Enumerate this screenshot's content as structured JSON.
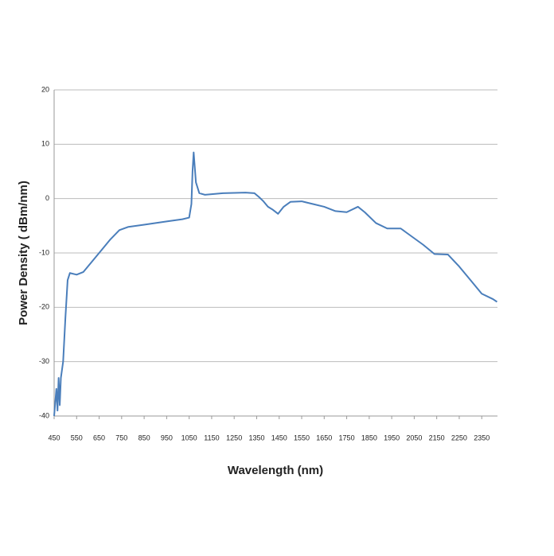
{
  "chart_data": {
    "type": "line",
    "x_label": "Wavelength (nm)",
    "y_label": "Power Density ( dBm/nm)",
    "x": [
      450,
      460,
      465,
      470,
      475,
      480,
      490,
      500,
      510,
      520,
      550,
      580,
      620,
      660,
      700,
      740,
      780,
      850,
      950,
      1020,
      1050,
      1060,
      1065,
      1070,
      1080,
      1095,
      1120,
      1200,
      1300,
      1340,
      1360,
      1380,
      1400,
      1420,
      1445,
      1470,
      1500,
      1550,
      1600,
      1650,
      1700,
      1750,
      1800,
      1830,
      1880,
      1930,
      1990,
      2040,
      2090,
      2140,
      2200,
      2250,
      2300,
      2350,
      2400,
      2418
    ],
    "series": [
      {
        "color": "#4a7ebb",
        "values": [
          -40,
          -35,
          -39,
          -33,
          -38,
          -33,
          -30,
          -22,
          -15,
          -13.7,
          -14,
          -13.5,
          -11.5,
          -9.5,
          -7.5,
          -5.8,
          -5.2,
          -4.8,
          -4.2,
          -3.8,
          -3.5,
          -1,
          5,
          8.5,
          3,
          1,
          0.7,
          1,
          1.1,
          1,
          0.3,
          -0.5,
          -1.5,
          -2,
          -2.8,
          -1.5,
          -0.6,
          -0.5,
          -1,
          -1.5,
          -2.3,
          -2.5,
          -1.5,
          -2.5,
          -4.5,
          -5.5,
          -5.5,
          -7,
          -8.5,
          -10.2,
          -10.3,
          -12.5,
          -15,
          -17.5,
          -18.5,
          -19
        ]
      }
    ],
    "xlim": [
      450,
      2420
    ],
    "xticks": [
      450,
      550,
      650,
      750,
      850,
      950,
      1050,
      1150,
      1250,
      1350,
      1450,
      1550,
      1650,
      1750,
      1850,
      1950,
      2050,
      2150,
      2250,
      2350
    ],
    "ylim": [
      -40,
      20
    ],
    "yticks": [
      -40,
      -30,
      -20,
      -10,
      0,
      10,
      20
    ],
    "grid": true
  }
}
